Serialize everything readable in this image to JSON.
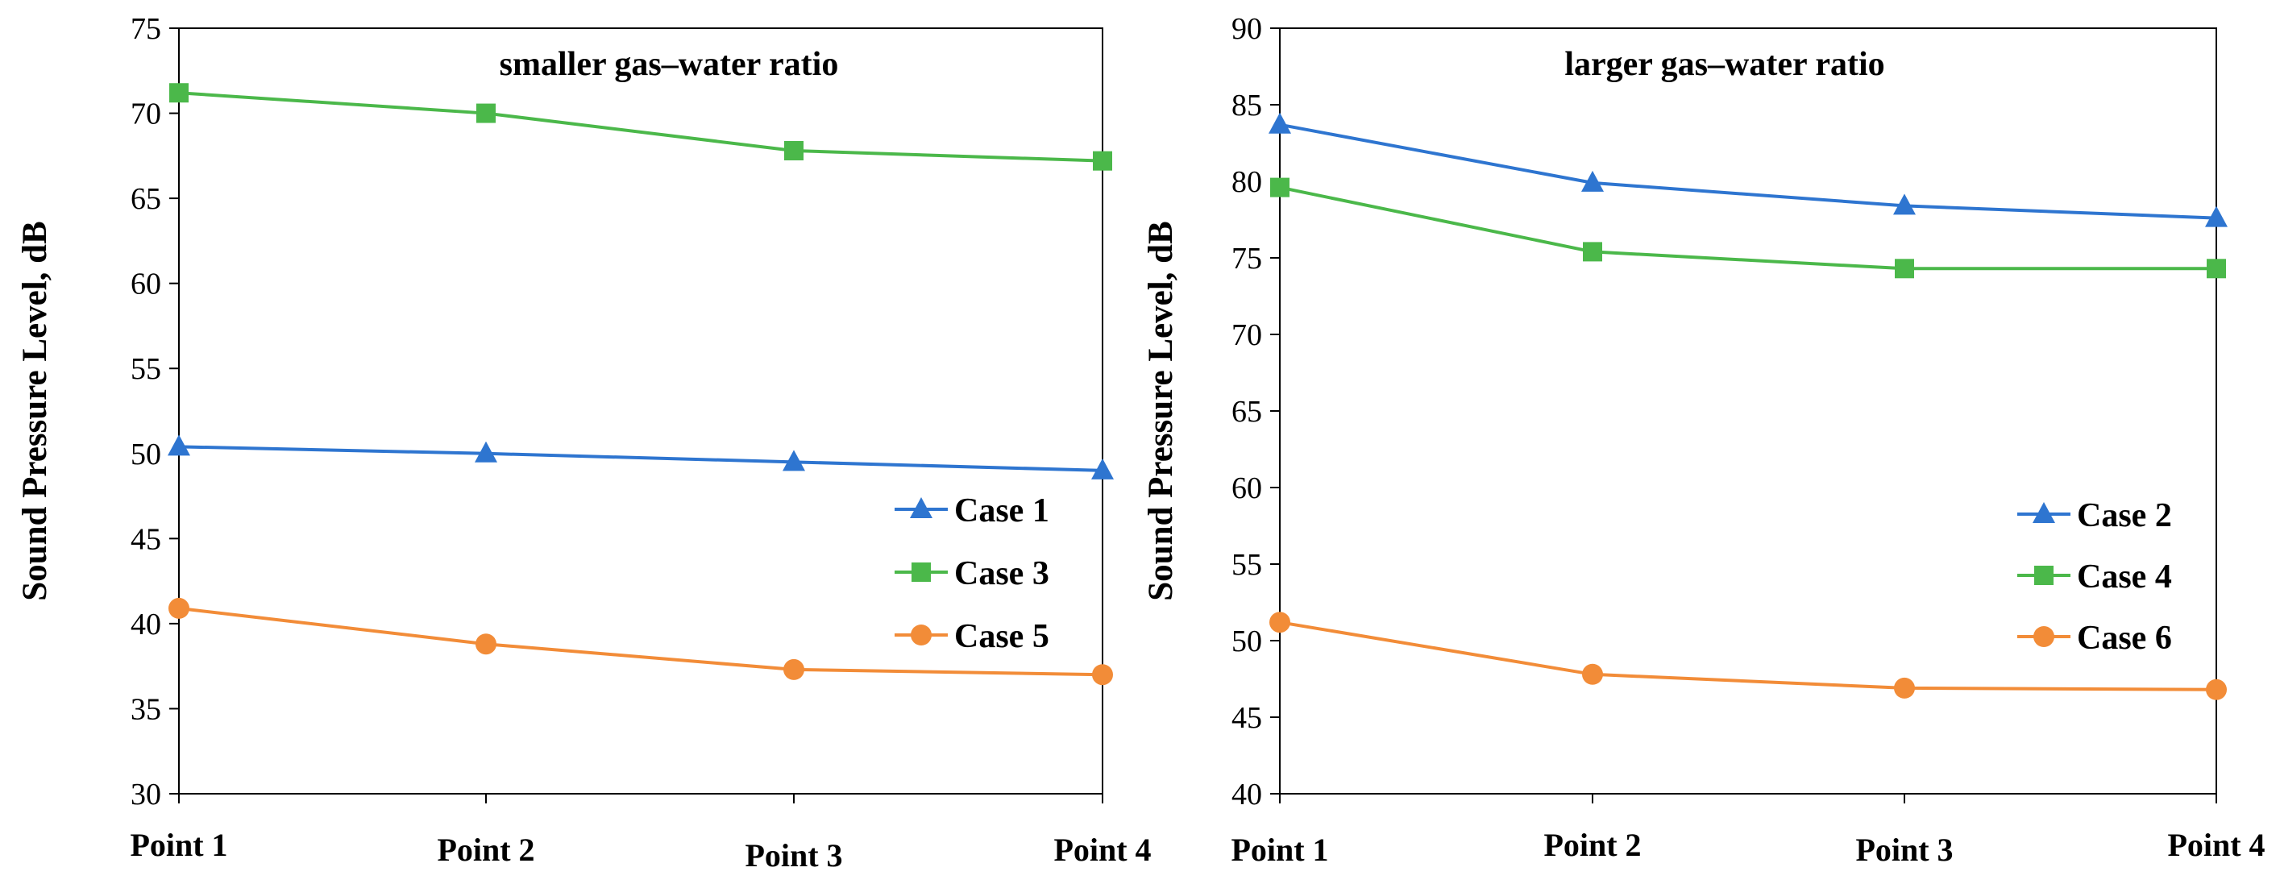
{
  "chart_data": [
    {
      "type": "line",
      "title": "smaller gas–water ratio",
      "xlabel": "",
      "ylabel": "Sound Pressure Level, dB",
      "categories": [
        "Point 1",
        "Point 2",
        "Point 3",
        "Point 4"
      ],
      "ylim": [
        30,
        75
      ],
      "yticks": [
        30,
        35,
        40,
        45,
        50,
        55,
        60,
        65,
        70,
        75
      ],
      "grid": false,
      "legend_position": "right",
      "series": [
        {
          "name": "Case 1",
          "color": "#2E75D0",
          "marker": "triangle",
          "values": [
            50.4,
            50.0,
            49.5,
            49.0
          ]
        },
        {
          "name": "Case 3",
          "color": "#4BB84A",
          "marker": "square",
          "values": [
            71.2,
            70.0,
            67.8,
            67.2
          ]
        },
        {
          "name": "Case 5",
          "color": "#F28C38",
          "marker": "circle",
          "values": [
            40.9,
            38.8,
            37.3,
            37.0
          ]
        }
      ]
    },
    {
      "type": "line",
      "title": "larger gas–water ratio",
      "xlabel": "",
      "ylabel": "Sound Pressure Level, dB",
      "categories": [
        "Point 1",
        "Point 2",
        "Point 3",
        "Point 4"
      ],
      "ylim": [
        40,
        90
      ],
      "yticks": [
        40,
        45,
        50,
        55,
        60,
        65,
        70,
        75,
        80,
        85,
        90
      ],
      "grid": false,
      "legend_position": "right",
      "series": [
        {
          "name": "Case 2",
          "color": "#2E75D0",
          "marker": "triangle",
          "values": [
            83.7,
            79.9,
            78.4,
            77.6
          ]
        },
        {
          "name": "Case 4",
          "color": "#4BB84A",
          "marker": "square",
          "values": [
            79.6,
            75.4,
            74.3,
            74.3
          ]
        },
        {
          "name": "Case 6",
          "color": "#F28C38",
          "marker": "circle",
          "values": [
            51.2,
            47.8,
            46.9,
            46.8
          ]
        }
      ]
    }
  ]
}
